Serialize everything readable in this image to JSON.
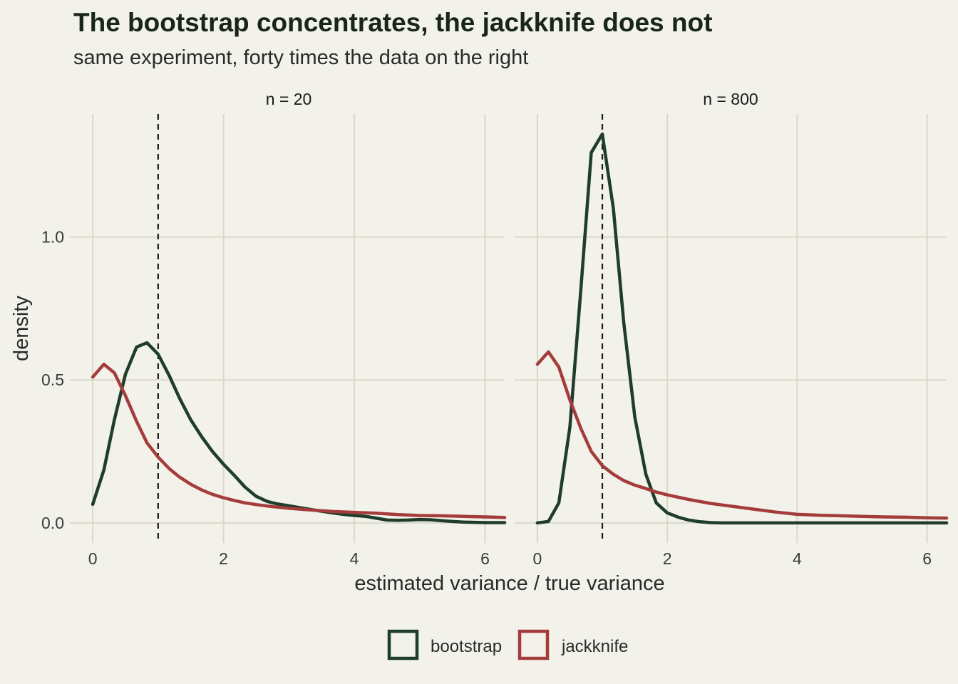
{
  "chart_data": {
    "type": "line",
    "title": "The bootstrap concentrates, the jackknife does not",
    "subtitle": "same experiment, forty times the data on the right",
    "xlabel": "estimated variance / true variance",
    "ylabel": "density",
    "xlim": [
      -0.35,
      6.3
    ],
    "ylim": [
      -0.07,
      1.43
    ],
    "x_ticks": [
      0,
      2,
      4,
      6
    ],
    "x_tick_labels": [
      "0",
      "2",
      "4",
      "6"
    ],
    "y_ticks": [
      0.0,
      0.5,
      1.0
    ],
    "y_tick_labels": [
      "0.0",
      "0.5",
      "1.0"
    ],
    "reference_line_x": 1,
    "grid": true,
    "legend_position": "bottom",
    "colors": {
      "bootstrap": "#1f3d2b",
      "jackknife": "#a53c3c",
      "background": "#f2f1ea",
      "grid": "#d9d9c8"
    },
    "legend": [
      {
        "name": "bootstrap",
        "color": "#1f3d2b"
      },
      {
        "name": "jackknife",
        "color": "#a53c3c"
      }
    ],
    "panels": [
      {
        "label": "n = 20",
        "series": [
          {
            "name": "bootstrap",
            "color": "#1f3d2b",
            "x": [
              0,
              0.17,
              0.33,
              0.5,
              0.67,
              0.83,
              1.0,
              1.17,
              1.33,
              1.5,
              1.67,
              1.83,
              2.0,
              2.17,
              2.33,
              2.5,
              2.67,
              2.83,
              3.0,
              3.17,
              3.33,
              3.5,
              3.67,
              3.83,
              4.0,
              4.17,
              4.33,
              4.5,
              4.67,
              4.83,
              5.0,
              5.17,
              5.33,
              5.5,
              5.67,
              5.83,
              6.0,
              6.17,
              6.3
            ],
            "y": [
              0.065,
              0.185,
              0.36,
              0.52,
              0.615,
              0.63,
              0.59,
              0.515,
              0.435,
              0.36,
              0.3,
              0.25,
              0.205,
              0.165,
              0.125,
              0.093,
              0.075,
              0.066,
              0.06,
              0.053,
              0.047,
              0.041,
              0.035,
              0.03,
              0.026,
              0.023,
              0.017,
              0.01,
              0.009,
              0.01,
              0.012,
              0.011,
              0.008,
              0.005,
              0.003,
              0.002,
              0.001,
              0.001,
              0.001
            ]
          },
          {
            "name": "jackknife",
            "color": "#a53c3c",
            "x": [
              0,
              0.17,
              0.33,
              0.5,
              0.67,
              0.83,
              1.0,
              1.17,
              1.33,
              1.5,
              1.67,
              1.83,
              2.0,
              2.17,
              2.33,
              2.5,
              2.67,
              2.83,
              3.0,
              3.33,
              3.67,
              4.0,
              4.33,
              4.67,
              5.0,
              5.33,
              5.67,
              6.0,
              6.3
            ],
            "y": [
              0.51,
              0.555,
              0.525,
              0.445,
              0.355,
              0.28,
              0.23,
              0.19,
              0.16,
              0.135,
              0.115,
              0.1,
              0.088,
              0.078,
              0.07,
              0.064,
              0.059,
              0.055,
              0.051,
              0.045,
              0.04,
              0.037,
              0.034,
              0.029,
              0.026,
              0.025,
              0.023,
              0.021,
              0.019
            ]
          }
        ]
      },
      {
        "label": "n = 800",
        "series": [
          {
            "name": "bootstrap",
            "color": "#1f3d2b",
            "x": [
              0,
              0.17,
              0.33,
              0.5,
              0.67,
              0.83,
              1.0,
              1.17,
              1.33,
              1.5,
              1.67,
              1.83,
              2.0,
              2.17,
              2.33,
              2.5,
              2.67,
              2.83,
              3.0,
              3.5,
              4.0,
              4.5,
              5.0,
              5.5,
              6.0,
              6.3
            ],
            "y": [
              0.0,
              0.005,
              0.07,
              0.335,
              0.82,
              1.295,
              1.36,
              1.1,
              0.7,
              0.37,
              0.17,
              0.07,
              0.035,
              0.02,
              0.01,
              0.004,
              0.001,
              0.0,
              0.0,
              0.0,
              0.0,
              0.0,
              0.0,
              0.0,
              0.0,
              0.0
            ]
          },
          {
            "name": "jackknife",
            "color": "#a53c3c",
            "x": [
              0,
              0.17,
              0.33,
              0.5,
              0.67,
              0.83,
              1.0,
              1.17,
              1.33,
              1.5,
              1.67,
              1.83,
              2.0,
              2.33,
              2.67,
              3.0,
              3.33,
              3.67,
              4.0,
              4.33,
              4.67,
              5.0,
              5.33,
              5.67,
              6.0,
              6.3
            ],
            "y": [
              0.555,
              0.598,
              0.545,
              0.43,
              0.33,
              0.25,
              0.2,
              0.17,
              0.148,
              0.132,
              0.12,
              0.108,
              0.098,
              0.082,
              0.068,
              0.058,
              0.048,
              0.038,
              0.03,
              0.027,
              0.025,
              0.023,
              0.021,
              0.02,
              0.018,
              0.017
            ]
          }
        ]
      }
    ]
  }
}
